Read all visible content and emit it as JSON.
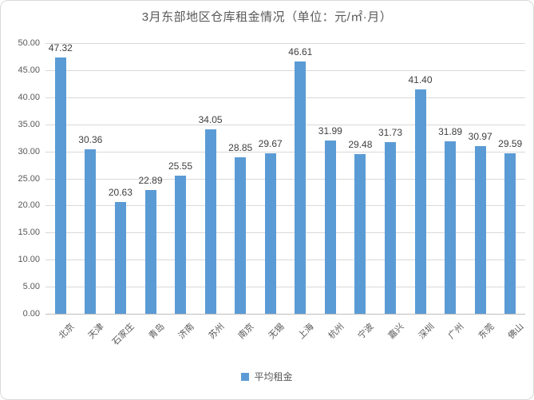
{
  "colors": {
    "bar": "#5B9BD5",
    "grid": "#D9D9D9",
    "axis": "#BFBFBF",
    "tick_text": "#595959",
    "data_label_text": "#404040",
    "frame_border": "#D9D9D9"
  },
  "chart_data": {
    "type": "bar",
    "title": "3月东部地区仓库租金情况（单位：元/㎡·月）",
    "categories": [
      "北京",
      "天津",
      "石家庄",
      "青岛",
      "济南",
      "苏州",
      "南京",
      "无锡",
      "上海",
      "杭州",
      "宁波",
      "嘉兴",
      "深圳",
      "广州",
      "东莞",
      "佛山"
    ],
    "values": [
      47.32,
      30.36,
      20.63,
      22.89,
      25.55,
      34.05,
      28.85,
      29.67,
      46.61,
      31.99,
      29.48,
      31.73,
      41.4,
      31.89,
      30.97,
      29.59
    ],
    "data_labels": [
      "47.32",
      "30.36",
      "20.63",
      "22.89",
      "25.55",
      "34.05",
      "28.85",
      "29.67",
      "46.61",
      "31.99",
      "29.48",
      "31.73",
      "41.40",
      "31.89",
      "30.97",
      "29.59"
    ],
    "xlabel": "",
    "ylabel": "",
    "ylim": [
      0,
      50
    ],
    "ytick_interval": 5,
    "ytick_labels": [
      "50.00",
      "45.00",
      "40.00",
      "35.00",
      "30.00",
      "25.00",
      "20.00",
      "15.00",
      "10.00",
      "5.00",
      "0.00"
    ],
    "grid": true,
    "legend": [
      "平均租金"
    ],
    "legend_position": "bottom"
  }
}
